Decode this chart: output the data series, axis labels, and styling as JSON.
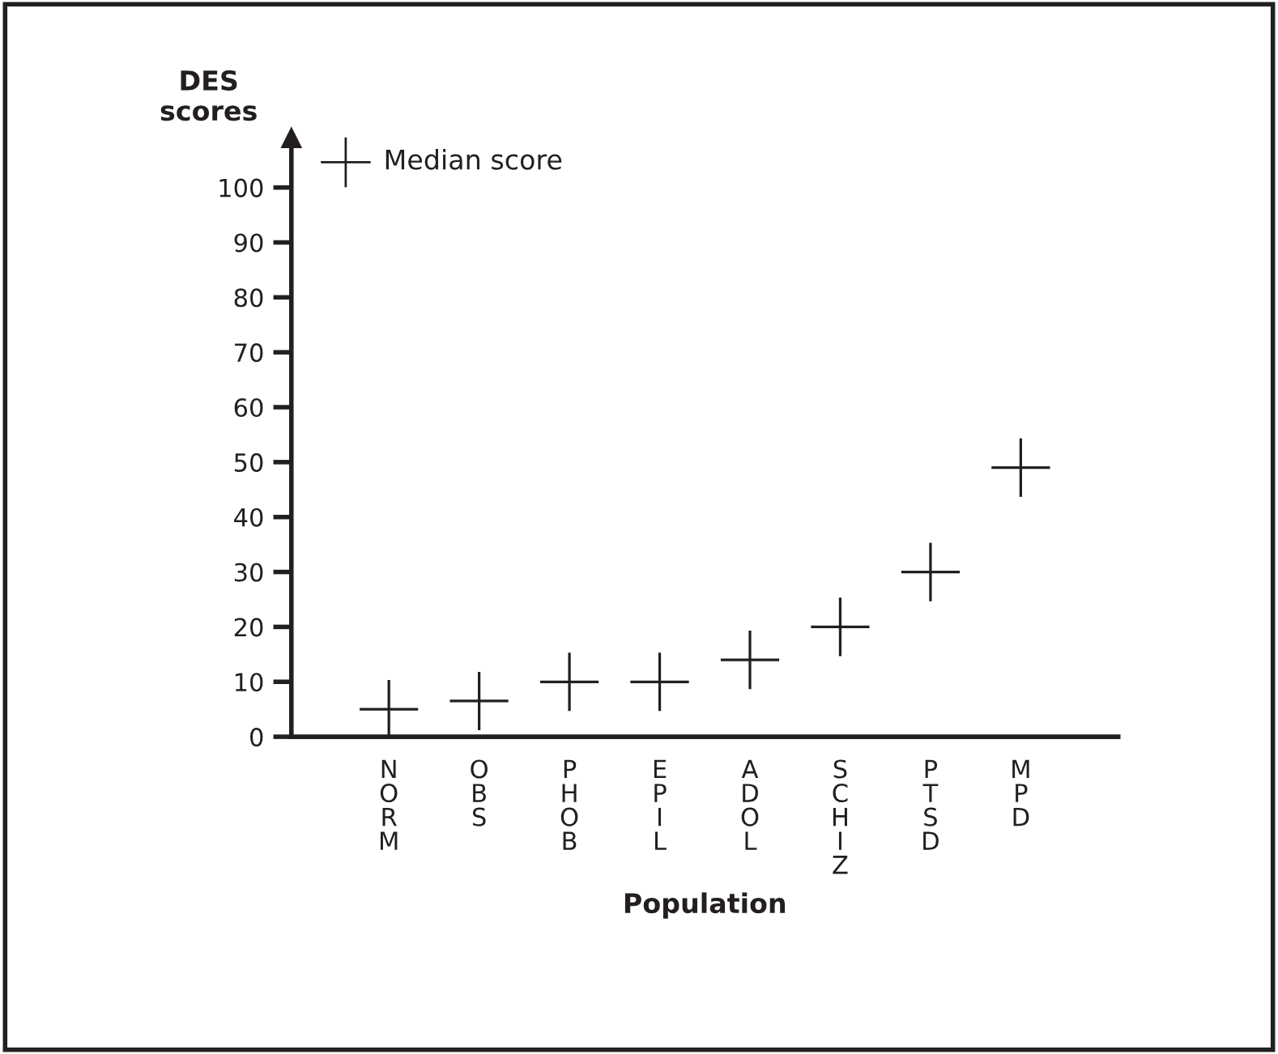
{
  "chart_data": {
    "type": "scatter",
    "xlabel": "Population",
    "ylabel": "DES scores",
    "categories": [
      "NORM",
      "OBS",
      "PHOB",
      "EPIL",
      "ADOL",
      "SCHIZ",
      "PTSD",
      "MPD"
    ],
    "series": [
      {
        "name": "Median score",
        "color": "#231f20",
        "values": [
          5,
          6.5,
          10,
          10,
          14,
          20,
          30,
          49
        ]
      }
    ],
    "marker": "cross",
    "ylim": [
      0,
      109
    ],
    "yticks": [
      0,
      10,
      20,
      30,
      40,
      50,
      60,
      70,
      80,
      90,
      100
    ],
    "grid": false,
    "legend": "top left"
  }
}
